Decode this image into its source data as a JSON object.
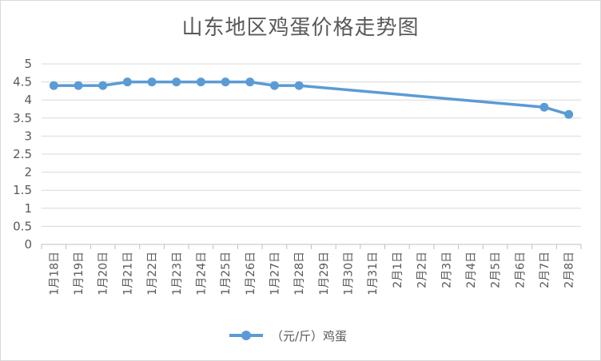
{
  "chart_data": {
    "type": "line",
    "title": "山东地区鸡蛋价格走势图",
    "xlabel": "",
    "ylabel": "",
    "ylim": [
      0,
      5
    ],
    "yticks": [
      "0",
      "0.5",
      "1",
      "1.5",
      "2",
      "2.5",
      "3",
      "3.5",
      "4",
      "4.5",
      "5"
    ],
    "categories": [
      "1月18日",
      "1月19日",
      "1月20日",
      "1月21日",
      "1月22日",
      "1月23日",
      "1月24日",
      "1月25日",
      "1月26日",
      "1月27日",
      "1月28日",
      "1月29日",
      "1月30日",
      "1月31日",
      "2月1日",
      "2月2日",
      "2月3日",
      "2月4日",
      "2月5日",
      "2月6日",
      "2月7日",
      "2月8日"
    ],
    "series": [
      {
        "name": "（元/斤）鸡蛋",
        "color": "#5b9bd5",
        "values": [
          4.4,
          4.4,
          4.4,
          4.5,
          4.5,
          4.5,
          4.5,
          4.5,
          4.5,
          4.4,
          4.4,
          null,
          null,
          null,
          null,
          null,
          null,
          null,
          null,
          null,
          3.8,
          3.6
        ]
      }
    ],
    "grid": true,
    "legend": "bottom"
  }
}
